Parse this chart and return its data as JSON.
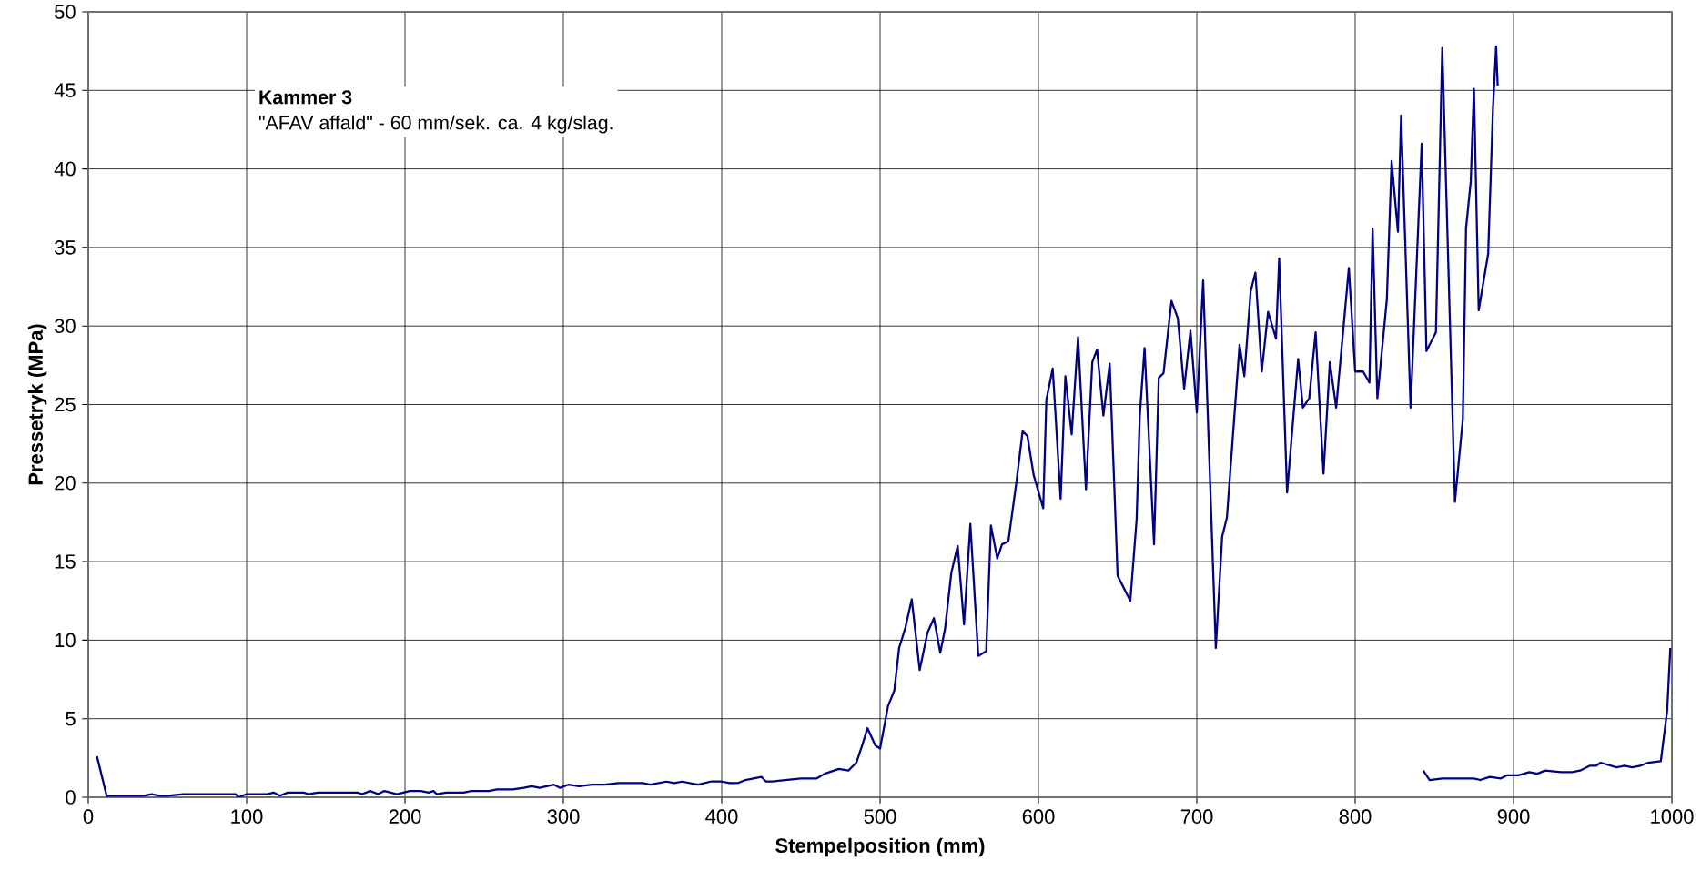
{
  "chart_data": {
    "type": "line",
    "xlabel": "Stempelposition (mm)",
    "ylabel": "Pressetryk (MPa)",
    "annotations": [
      "Kammer 3",
      "\"AFAV affald\" - 60 mm/sek. ca. 4 kg/slag."
    ],
    "xlim": [
      0,
      1000
    ],
    "ylim": [
      0,
      50
    ],
    "xticks": [
      0,
      100,
      200,
      300,
      400,
      500,
      600,
      700,
      800,
      900,
      1000
    ],
    "yticks": [
      0,
      5,
      10,
      15,
      20,
      25,
      30,
      35,
      40,
      45,
      50
    ],
    "grid": true,
    "line_style": "solid",
    "marker": "none",
    "series": [
      {
        "color": "#000080",
        "x": [
          5.5,
          11.6,
          20,
          35,
          40,
          45,
          50,
          60,
          70,
          80,
          93,
          95,
          100,
          113,
          117,
          121,
          126,
          136,
          139,
          145,
          170,
          173,
          178,
          183,
          187,
          195,
          203,
          210,
          215,
          218,
          220,
          226,
          237,
          242,
          253,
          258,
          268,
          275,
          280,
          285,
          294,
          298,
          303,
          310,
          318,
          326,
          335,
          350,
          355,
          365,
          370,
          375,
          385,
          393,
          400,
          405,
          410,
          415,
          425,
          428,
          432,
          440,
          450,
          460,
          465,
          474,
          480,
          485,
          489,
          492,
          497,
          500,
          505,
          509,
          512,
          516,
          520,
          525,
          530,
          534,
          538,
          541,
          545,
          549,
          553,
          557,
          562,
          567,
          570,
          574,
          577,
          581,
          586,
          590,
          593,
          597,
          603,
          605,
          609,
          614,
          617,
          621,
          625,
          630,
          634,
          637,
          641,
          645,
          650,
          658,
          662,
          664,
          667,
          673,
          676,
          679,
          684,
          688,
          692,
          696,
          700,
          704,
          712,
          716,
          719,
          727,
          730,
          734,
          737,
          741,
          745,
          750,
          752,
          757,
          764,
          767,
          771,
          775,
          780,
          784,
          788,
          796,
          800,
          805,
          809,
          811,
          814,
          820,
          823,
          827,
          829,
          835,
          842,
          845,
          851,
          855,
          863,
          868,
          870,
          873,
          875,
          878,
          884,
          887,
          889,
          890
        ],
        "values": [
          2.6,
          0.1,
          0.1,
          0.1,
          0.2,
          0.1,
          0.1,
          0.2,
          0.2,
          0.2,
          0.2,
          0,
          0.2,
          0.2,
          0.3,
          0.1,
          0.3,
          0.3,
          0.2,
          0.3,
          0.3,
          0.2,
          0.4,
          0.2,
          0.4,
          0.2,
          0.4,
          0.4,
          0.3,
          0.4,
          0.2,
          0.3,
          0.3,
          0.4,
          0.4,
          0.5,
          0.5,
          0.6,
          0.7,
          0.6,
          0.8,
          0.6,
          0.8,
          0.7,
          0.8,
          0.8,
          0.9,
          0.9,
          0.8,
          1.0,
          0.9,
          1.0,
          0.8,
          1.0,
          1.0,
          0.9,
          0.9,
          1.1,
          1.3,
          1.0,
          1.0,
          1.1,
          1.2,
          1.2,
          1.5,
          1.8,
          1.7,
          2.2,
          3.4,
          4.4,
          3.3,
          3.1,
          5.8,
          6.8,
          9.5,
          10.8,
          12.6,
          8.1,
          10.5,
          11.4,
          9.2,
          10.7,
          14.3,
          16,
          11,
          17.4,
          9,
          9.3,
          17.3,
          15.2,
          16.1,
          16.3,
          20,
          23.3,
          23,
          20.5,
          18.4,
          25.3,
          27.3,
          19,
          26.8,
          23.1,
          29.3,
          19.6,
          27.7,
          28.5,
          24.3,
          27.6,
          14.1,
          12.5,
          17.7,
          24.3,
          28.6,
          16.1,
          26.7,
          27,
          31.6,
          30.5,
          26,
          29.7,
          24.5,
          32.9,
          9.5,
          16.6,
          17.8,
          28.8,
          26.8,
          32.2,
          33.4,
          27.1,
          30.9,
          29.2,
          34.3,
          19.4,
          27.9,
          24.8,
          25.4,
          29.6,
          20.6,
          27.7,
          24.8,
          33.7,
          27.1,
          27.1,
          26.4,
          36.2,
          25.4,
          31.7,
          40.5,
          36,
          43.4,
          24.8,
          41.6,
          28.4,
          29.6,
          47.7,
          18.8,
          24.1,
          36.2,
          39.2,
          45.1,
          31,
          34.6,
          43.8,
          47.8,
          45.3
        ]
      },
      {
        "color": "#000080",
        "x": [
          843,
          847,
          855,
          875,
          879,
          885,
          892,
          896,
          903,
          910,
          915,
          920,
          930,
          937,
          942,
          948,
          952,
          955,
          965,
          970,
          975,
          980,
          985,
          993,
          997,
          999
        ],
        "values": [
          1.7,
          1.1,
          1.2,
          1.2,
          1.1,
          1.3,
          1.2,
          1.4,
          1.4,
          1.6,
          1.5,
          1.7,
          1.6,
          1.6,
          1.7,
          2.0,
          2.0,
          2.2,
          1.9,
          2.0,
          1.9,
          2.0,
          2.2,
          2.3,
          5.5,
          9.5
        ]
      }
    ]
  }
}
